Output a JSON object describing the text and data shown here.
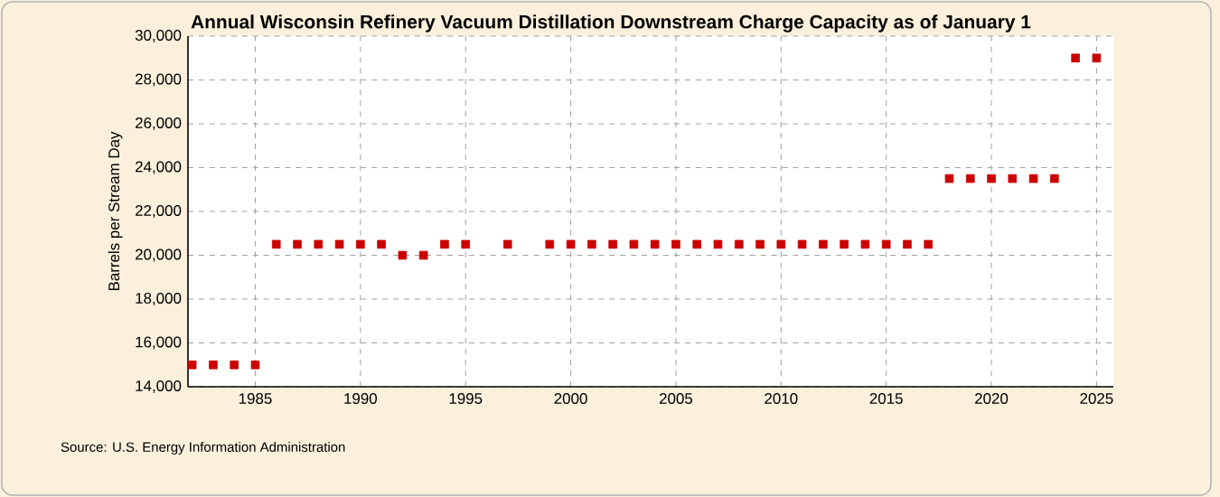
{
  "chart_data": {
    "type": "scatter",
    "title": "Annual Wisconsin Refinery Vacuum Distillation Downstream Charge Capacity as of January 1",
    "ylabel": "Barrels per Stream Day",
    "annotations": [
      "Source: U.S. Energy Information Administration"
    ],
    "x": [
      1982,
      1983,
      1984,
      1985,
      1986,
      1987,
      1988,
      1989,
      1990,
      1991,
      1992,
      1993,
      1994,
      1995,
      1997,
      1999,
      2000,
      2001,
      2002,
      2003,
      2004,
      2005,
      2006,
      2007,
      2008,
      2009,
      2010,
      2011,
      2012,
      2013,
      2014,
      2015,
      2016,
      2017,
      2018,
      2019,
      2020,
      2021,
      2022,
      2023,
      2024,
      2025
    ],
    "series": [
      {
        "color": "#cc0000",
        "values": [
          15000,
          15000,
          15000,
          15000,
          20500,
          20500,
          20500,
          20500,
          20500,
          20500,
          20000,
          20000,
          20500,
          20500,
          20500,
          20500,
          20500,
          20500,
          20500,
          20500,
          20500,
          20500,
          20500,
          20500,
          20500,
          20500,
          20500,
          20500,
          20500,
          20500,
          20500,
          20500,
          20500,
          20500,
          23500,
          23500,
          23500,
          23500,
          23500,
          23500,
          29000,
          29000
        ]
      }
    ],
    "xlim": [
      1981.8,
      2025.8
    ],
    "xticks": [
      1985,
      1990,
      1995,
      2000,
      2005,
      2010,
      2015,
      2020,
      2025
    ],
    "ylim": [
      14000,
      30000
    ],
    "yticks": [
      {
        "value": 14000,
        "label": "14,000"
      },
      {
        "value": 16000,
        "label": "16,000"
      },
      {
        "value": 18000,
        "label": "18,000"
      },
      {
        "value": 20000,
        "label": "20,000"
      },
      {
        "value": 22000,
        "label": "22,000"
      },
      {
        "value": 24000,
        "label": "24,000"
      },
      {
        "value": 26000,
        "label": "26,000"
      },
      {
        "value": 28000,
        "label": "28,000"
      },
      {
        "value": 30000,
        "label": "30,000"
      }
    ],
    "grid": true,
    "marker": "square"
  }
}
